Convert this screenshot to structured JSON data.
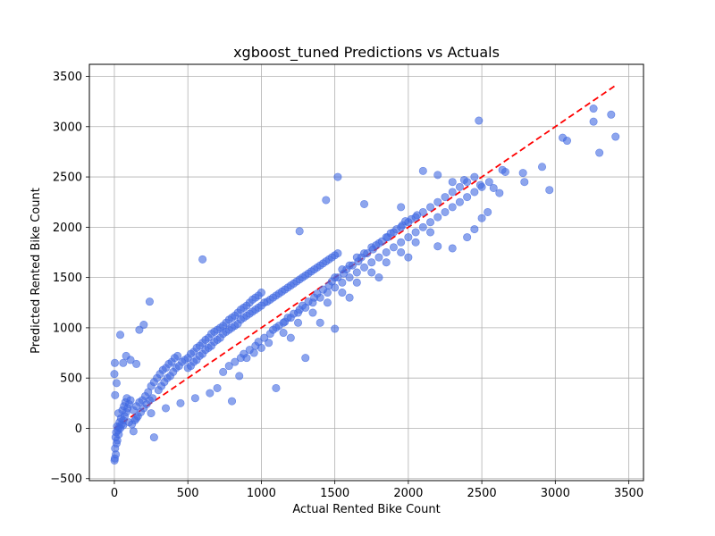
{
  "chart_data": {
    "type": "scatter",
    "title": "xgboost_tuned Predictions vs Actuals",
    "xlabel": "Actual Rented Bike Count",
    "ylabel": "Predicted Rented Bike Count",
    "xlim": [
      -170,
      3600
    ],
    "ylim": [
      -520,
      3620
    ],
    "xticks": [
      0,
      500,
      1000,
      1500,
      2000,
      2500,
      3000,
      3500
    ],
    "yticks": [
      -500,
      0,
      500,
      1000,
      1500,
      2000,
      2500,
      3000,
      3500
    ],
    "grid": true,
    "marker_color": "#4169e1",
    "marker_alpha": 0.6,
    "reference_line": {
      "from": [
        0,
        0
      ],
      "to": [
        3420,
        3420
      ],
      "color": "#ff0000",
      "style": "dashed"
    },
    "points": [
      [
        1,
        -320
      ],
      [
        3,
        -300
      ],
      [
        10,
        -260
      ],
      [
        5,
        -200
      ],
      [
        15,
        -150
      ],
      [
        20,
        -120
      ],
      [
        8,
        -90
      ],
      [
        30,
        -60
      ],
      [
        12,
        -40
      ],
      [
        25,
        -20
      ],
      [
        40,
        0
      ],
      [
        18,
        20
      ],
      [
        50,
        40
      ],
      [
        35,
        60
      ],
      [
        60,
        80
      ],
      [
        45,
        100
      ],
      [
        70,
        120
      ],
      [
        28,
        150
      ],
      [
        80,
        160
      ],
      [
        55,
        180
      ],
      [
        90,
        200
      ],
      [
        65,
        220
      ],
      [
        100,
        240
      ],
      [
        75,
        260
      ],
      [
        110,
        280
      ],
      [
        85,
        300
      ],
      [
        5,
        330
      ],
      [
        15,
        450
      ],
      [
        0,
        540
      ],
      [
        3,
        650
      ],
      [
        40,
        930
      ],
      [
        60,
        650
      ],
      [
        80,
        720
      ],
      [
        110,
        680
      ],
      [
        150,
        640
      ],
      [
        200,
        1030
      ],
      [
        240,
        1260
      ],
      [
        170,
        980
      ],
      [
        120,
        40
      ],
      [
        140,
        80
      ],
      [
        160,
        120
      ],
      [
        180,
        160
      ],
      [
        200,
        200
      ],
      [
        220,
        240
      ],
      [
        240,
        280
      ],
      [
        260,
        300
      ],
      [
        130,
        180
      ],
      [
        150,
        220
      ],
      [
        170,
        260
      ],
      [
        190,
        280
      ],
      [
        210,
        320
      ],
      [
        230,
        360
      ],
      [
        250,
        420
      ],
      [
        270,
        460
      ],
      [
        290,
        500
      ],
      [
        310,
        540
      ],
      [
        330,
        580
      ],
      [
        350,
        600
      ],
      [
        370,
        640
      ],
      [
        390,
        660
      ],
      [
        410,
        700
      ],
      [
        430,
        720
      ],
      [
        300,
        380
      ],
      [
        320,
        420
      ],
      [
        340,
        460
      ],
      [
        360,
        500
      ],
      [
        380,
        520
      ],
      [
        400,
        560
      ],
      [
        420,
        600
      ],
      [
        440,
        620
      ],
      [
        460,
        660
      ],
      [
        480,
        680
      ],
      [
        500,
        700
      ],
      [
        520,
        740
      ],
      [
        540,
        760
      ],
      [
        560,
        800
      ],
      [
        580,
        820
      ],
      [
        600,
        850
      ],
      [
        620,
        880
      ],
      [
        640,
        900
      ],
      [
        660,
        940
      ],
      [
        680,
        960
      ],
      [
        700,
        980
      ],
      [
        720,
        1000
      ],
      [
        740,
        1020
      ],
      [
        760,
        1050
      ],
      [
        780,
        1080
      ],
      [
        800,
        1100
      ],
      [
        820,
        1120
      ],
      [
        840,
        1150
      ],
      [
        860,
        1180
      ],
      [
        880,
        1200
      ],
      [
        900,
        1220
      ],
      [
        920,
        1250
      ],
      [
        940,
        1280
      ],
      [
        960,
        1300
      ],
      [
        980,
        1320
      ],
      [
        1000,
        1350
      ],
      [
        500,
        600
      ],
      [
        520,
        620
      ],
      [
        540,
        660
      ],
      [
        560,
        680
      ],
      [
        580,
        720
      ],
      [
        600,
        740
      ],
      [
        620,
        780
      ],
      [
        640,
        800
      ],
      [
        660,
        820
      ],
      [
        680,
        860
      ],
      [
        700,
        880
      ],
      [
        720,
        900
      ],
      [
        740,
        940
      ],
      [
        760,
        960
      ],
      [
        780,
        980
      ],
      [
        800,
        1000
      ],
      [
        820,
        1020
      ],
      [
        840,
        1040
      ],
      [
        860,
        1080
      ],
      [
        880,
        1100
      ],
      [
        900,
        1120
      ],
      [
        920,
        1140
      ],
      [
        940,
        1160
      ],
      [
        960,
        1180
      ],
      [
        980,
        1200
      ],
      [
        1000,
        1220
      ],
      [
        1020,
        1250
      ],
      [
        1040,
        1260
      ],
      [
        1060,
        1280
      ],
      [
        1080,
        1300
      ],
      [
        1100,
        1320
      ],
      [
        1120,
        1340
      ],
      [
        1140,
        1360
      ],
      [
        1160,
        1380
      ],
      [
        1180,
        1400
      ],
      [
        1200,
        1420
      ],
      [
        1220,
        1440
      ],
      [
        1240,
        1460
      ],
      [
        1260,
        1480
      ],
      [
        1280,
        1500
      ],
      [
        1300,
        1520
      ],
      [
        1320,
        1540
      ],
      [
        1340,
        1560
      ],
      [
        1360,
        1580
      ],
      [
        1380,
        1600
      ],
      [
        1400,
        1620
      ],
      [
        1420,
        1640
      ],
      [
        1440,
        1660
      ],
      [
        1460,
        1680
      ],
      [
        1480,
        1700
      ],
      [
        1500,
        1720
      ],
      [
        1520,
        1740
      ],
      [
        1100,
        1000
      ],
      [
        1150,
        1050
      ],
      [
        1200,
        1100
      ],
      [
        1250,
        1150
      ],
      [
        1300,
        1200
      ],
      [
        1350,
        1250
      ],
      [
        1400,
        1300
      ],
      [
        1450,
        1350
      ],
      [
        1500,
        1400
      ],
      [
        1550,
        1450
      ],
      [
        1600,
        1500
      ],
      [
        1650,
        1550
      ],
      [
        1700,
        1600
      ],
      [
        1750,
        1650
      ],
      [
        1800,
        1700
      ],
      [
        1850,
        1750
      ],
      [
        1900,
        1800
      ],
      [
        1950,
        1850
      ],
      [
        2000,
        1900
      ],
      [
        2050,
        1950
      ],
      [
        2100,
        2000
      ],
      [
        2150,
        2050
      ],
      [
        2200,
        2100
      ],
      [
        2250,
        2150
      ],
      [
        2300,
        2200
      ],
      [
        2350,
        2250
      ],
      [
        2400,
        2300
      ],
      [
        2450,
        2350
      ],
      [
        2500,
        2400
      ],
      [
        2550,
        2450
      ],
      [
        1500,
        1500
      ],
      [
        1550,
        1580
      ],
      [
        1600,
        1620
      ],
      [
        1650,
        1700
      ],
      [
        1700,
        1740
      ],
      [
        1750,
        1800
      ],
      [
        1800,
        1840
      ],
      [
        1850,
        1900
      ],
      [
        1900,
        1950
      ],
      [
        1950,
        2000
      ],
      [
        2000,
        2050
      ],
      [
        2050,
        2100
      ],
      [
        2100,
        2150
      ],
      [
        2150,
        2200
      ],
      [
        2200,
        2250
      ],
      [
        2250,
        2300
      ],
      [
        2300,
        2350
      ],
      [
        2350,
        2400
      ],
      [
        2400,
        2450
      ],
      [
        2450,
        2500
      ],
      [
        1520,
        2500
      ],
      [
        1440,
        2270
      ],
      [
        1260,
        1960
      ],
      [
        1700,
        2230
      ],
      [
        1950,
        2200
      ],
      [
        2100,
        2560
      ],
      [
        2200,
        2520
      ],
      [
        2300,
        2450
      ],
      [
        2380,
        2470
      ],
      [
        2490,
        2420
      ],
      [
        2480,
        3060
      ],
      [
        2640,
        2570
      ],
      [
        2660,
        2550
      ],
      [
        2580,
        2390
      ],
      [
        2620,
        2340
      ],
      [
        2780,
        2540
      ],
      [
        2790,
        2450
      ],
      [
        2910,
        2600
      ],
      [
        2960,
        2370
      ],
      [
        3050,
        2890
      ],
      [
        3080,
        2860
      ],
      [
        3260,
        3180
      ],
      [
        3260,
        3050
      ],
      [
        3300,
        2740
      ],
      [
        3380,
        3120
      ],
      [
        3410,
        2900
      ],
      [
        600,
        1680
      ],
      [
        270,
        -90
      ],
      [
        130,
        -30
      ],
      [
        800,
        270
      ],
      [
        850,
        520
      ],
      [
        1100,
        400
      ],
      [
        1300,
        700
      ],
      [
        1500,
        990
      ],
      [
        1600,
        1300
      ],
      [
        1800,
        1500
      ],
      [
        2000,
        1700
      ],
      [
        2200,
        1810
      ],
      [
        2300,
        1790
      ],
      [
        2400,
        1900
      ],
      [
        2450,
        1980
      ],
      [
        2500,
        2090
      ],
      [
        2540,
        2150
      ],
      [
        1400,
        1050
      ],
      [
        1200,
        900
      ],
      [
        1000,
        800
      ],
      [
        900,
        700
      ],
      [
        950,
        750
      ],
      [
        1050,
        850
      ],
      [
        1150,
        950
      ],
      [
        1250,
        1050
      ],
      [
        1350,
        1150
      ],
      [
        1450,
        1250
      ],
      [
        1550,
        1350
      ],
      [
        1650,
        1450
      ],
      [
        1750,
        1550
      ],
      [
        1850,
        1650
      ],
      [
        1950,
        1750
      ],
      [
        2050,
        1850
      ],
      [
        2150,
        1950
      ],
      [
        700,
        400
      ],
      [
        650,
        350
      ],
      [
        550,
        300
      ],
      [
        450,
        250
      ],
      [
        350,
        200
      ],
      [
        250,
        150
      ],
      [
        150,
        100
      ],
      [
        100,
        60
      ],
      [
        60,
        30
      ],
      [
        30,
        10
      ],
      [
        740,
        560
      ],
      [
        780,
        620
      ],
      [
        820,
        660
      ],
      [
        860,
        700
      ],
      [
        880,
        740
      ],
      [
        920,
        780
      ],
      [
        960,
        820
      ],
      [
        980,
        860
      ],
      [
        1020,
        900
      ],
      [
        1060,
        940
      ],
      [
        1080,
        980
      ],
      [
        1120,
        1020
      ],
      [
        1160,
        1060
      ],
      [
        1180,
        1100
      ],
      [
        1220,
        1140
      ],
      [
        1260,
        1180
      ],
      [
        1280,
        1220
      ],
      [
        1320,
        1260
      ],
      [
        1360,
        1300
      ],
      [
        1380,
        1340
      ],
      [
        1420,
        1380
      ],
      [
        1460,
        1420
      ],
      [
        1480,
        1460
      ],
      [
        1520,
        1500
      ],
      [
        1560,
        1540
      ],
      [
        1580,
        1580
      ],
      [
        1620,
        1620
      ],
      [
        1660,
        1660
      ],
      [
        1680,
        1700
      ],
      [
        1720,
        1740
      ],
      [
        1760,
        1780
      ],
      [
        1780,
        1820
      ],
      [
        1820,
        1860
      ],
      [
        1860,
        1900
      ],
      [
        1880,
        1940
      ],
      [
        1920,
        1980
      ],
      [
        1960,
        2020
      ],
      [
        1980,
        2060
      ],
      [
        2020,
        2080
      ],
      [
        2060,
        2120
      ]
    ]
  }
}
